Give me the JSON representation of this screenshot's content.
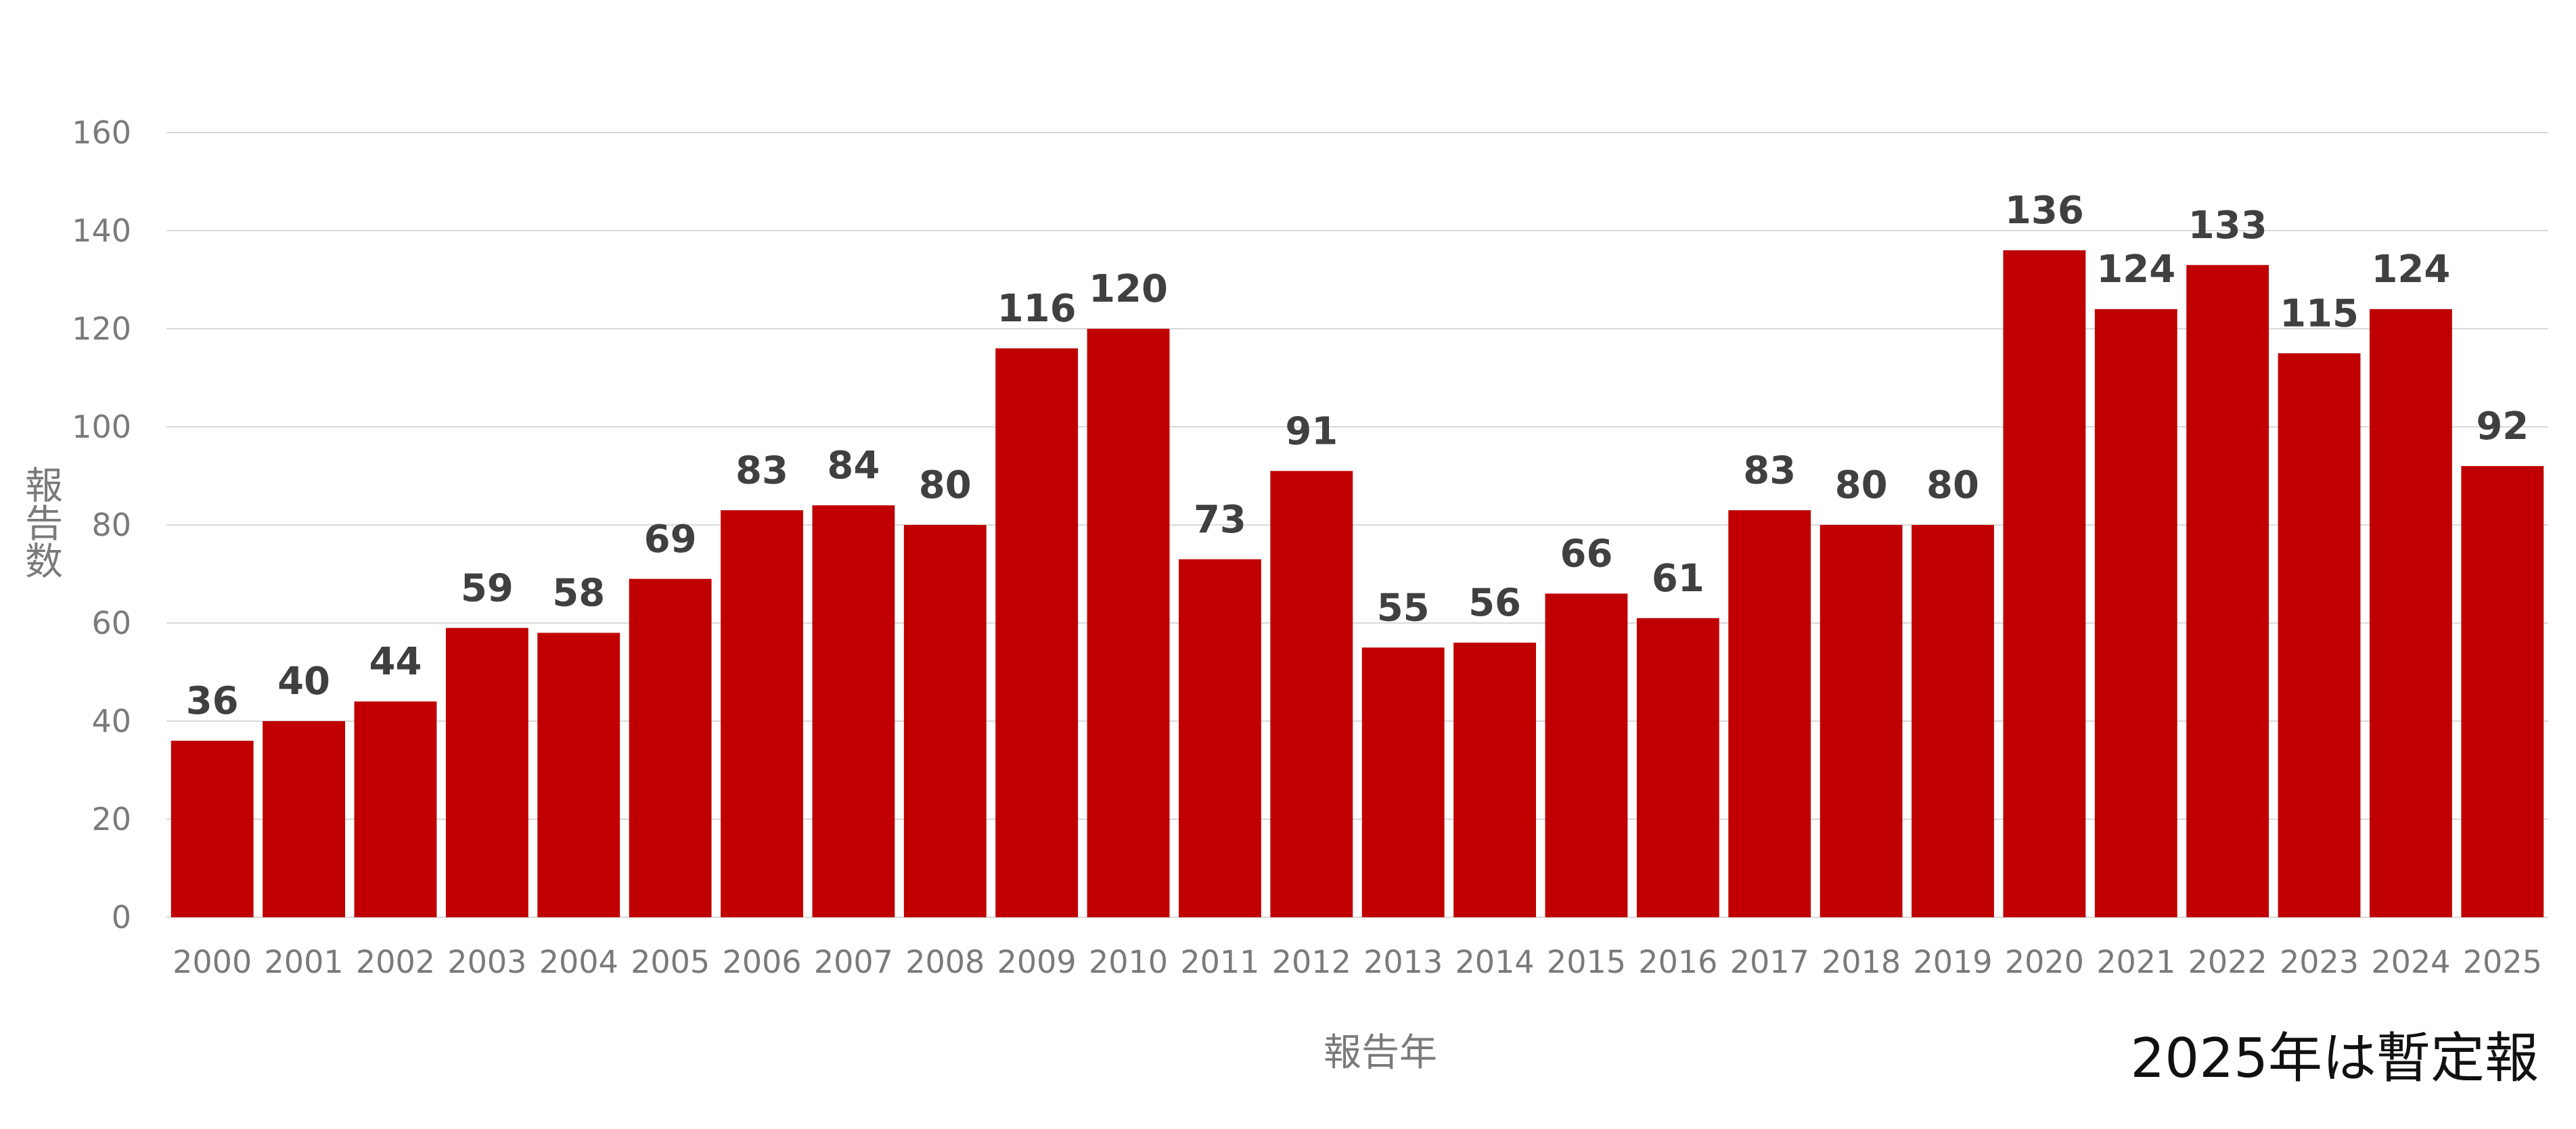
{
  "chart_data": {
    "type": "bar",
    "categories": [
      "2000",
      "2001",
      "2002",
      "2003",
      "2004",
      "2005",
      "2006",
      "2007",
      "2008",
      "2009",
      "2010",
      "2011",
      "2012",
      "2013",
      "2014",
      "2015",
      "2016",
      "2017",
      "2018",
      "2019",
      "2020",
      "2021",
      "2022",
      "2023",
      "2024",
      "2025"
    ],
    "values": [
      36,
      40,
      44,
      59,
      58,
      69,
      83,
      84,
      80,
      116,
      120,
      73,
      91,
      55,
      56,
      66,
      61,
      83,
      80,
      80,
      136,
      124,
      133,
      115,
      124,
      92
    ],
    "xlabel": "報告年",
    "ylabel": "報告数",
    "ylim": [
      0,
      160
    ],
    "yticks": [
      0,
      20,
      40,
      60,
      80,
      100,
      120,
      140,
      160
    ],
    "grid": true,
    "bar_color": "#c00000",
    "grid_color": "#d9d9d9",
    "data_labels": true
  },
  "note": "2025年は暫定報"
}
